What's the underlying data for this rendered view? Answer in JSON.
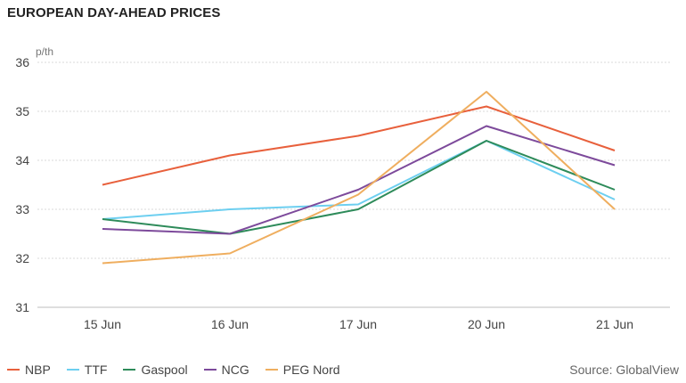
{
  "header": {
    "title": "EUROPEAN DAY-AHEAD PRICES"
  },
  "footer": {
    "source": "Source: GlobalView"
  },
  "chart_data": {
    "type": "line",
    "title": "EUROPEAN DAY-AHEAD PRICES",
    "ylabel": "p/th",
    "xlabel": "",
    "categories": [
      "15 Jun",
      "16 Jun",
      "17 Jun",
      "20 Jun",
      "21 Jun"
    ],
    "ylim": [
      31,
      36
    ],
    "yticks": [
      31,
      32,
      33,
      34,
      35,
      36
    ],
    "grid": true,
    "legend_position": "bottom-left",
    "series": [
      {
        "name": "NBP",
        "color": "#e8603c",
        "values": [
          33.5,
          34.1,
          34.5,
          35.1,
          34.2
        ]
      },
      {
        "name": "TTF",
        "color": "#6dcff0",
        "values": [
          32.8,
          33.0,
          33.1,
          34.4,
          33.2
        ]
      },
      {
        "name": "Gaspool",
        "color": "#2e8b5a",
        "values": [
          32.8,
          32.5,
          33.0,
          34.4,
          33.4
        ]
      },
      {
        "name": "NCG",
        "color": "#7d4a9b",
        "values": [
          32.6,
          32.5,
          33.4,
          34.7,
          33.9
        ]
      },
      {
        "name": "PEG Nord",
        "color": "#efae5f",
        "values": [
          31.9,
          32.1,
          33.3,
          35.4,
          33.0
        ]
      }
    ]
  }
}
